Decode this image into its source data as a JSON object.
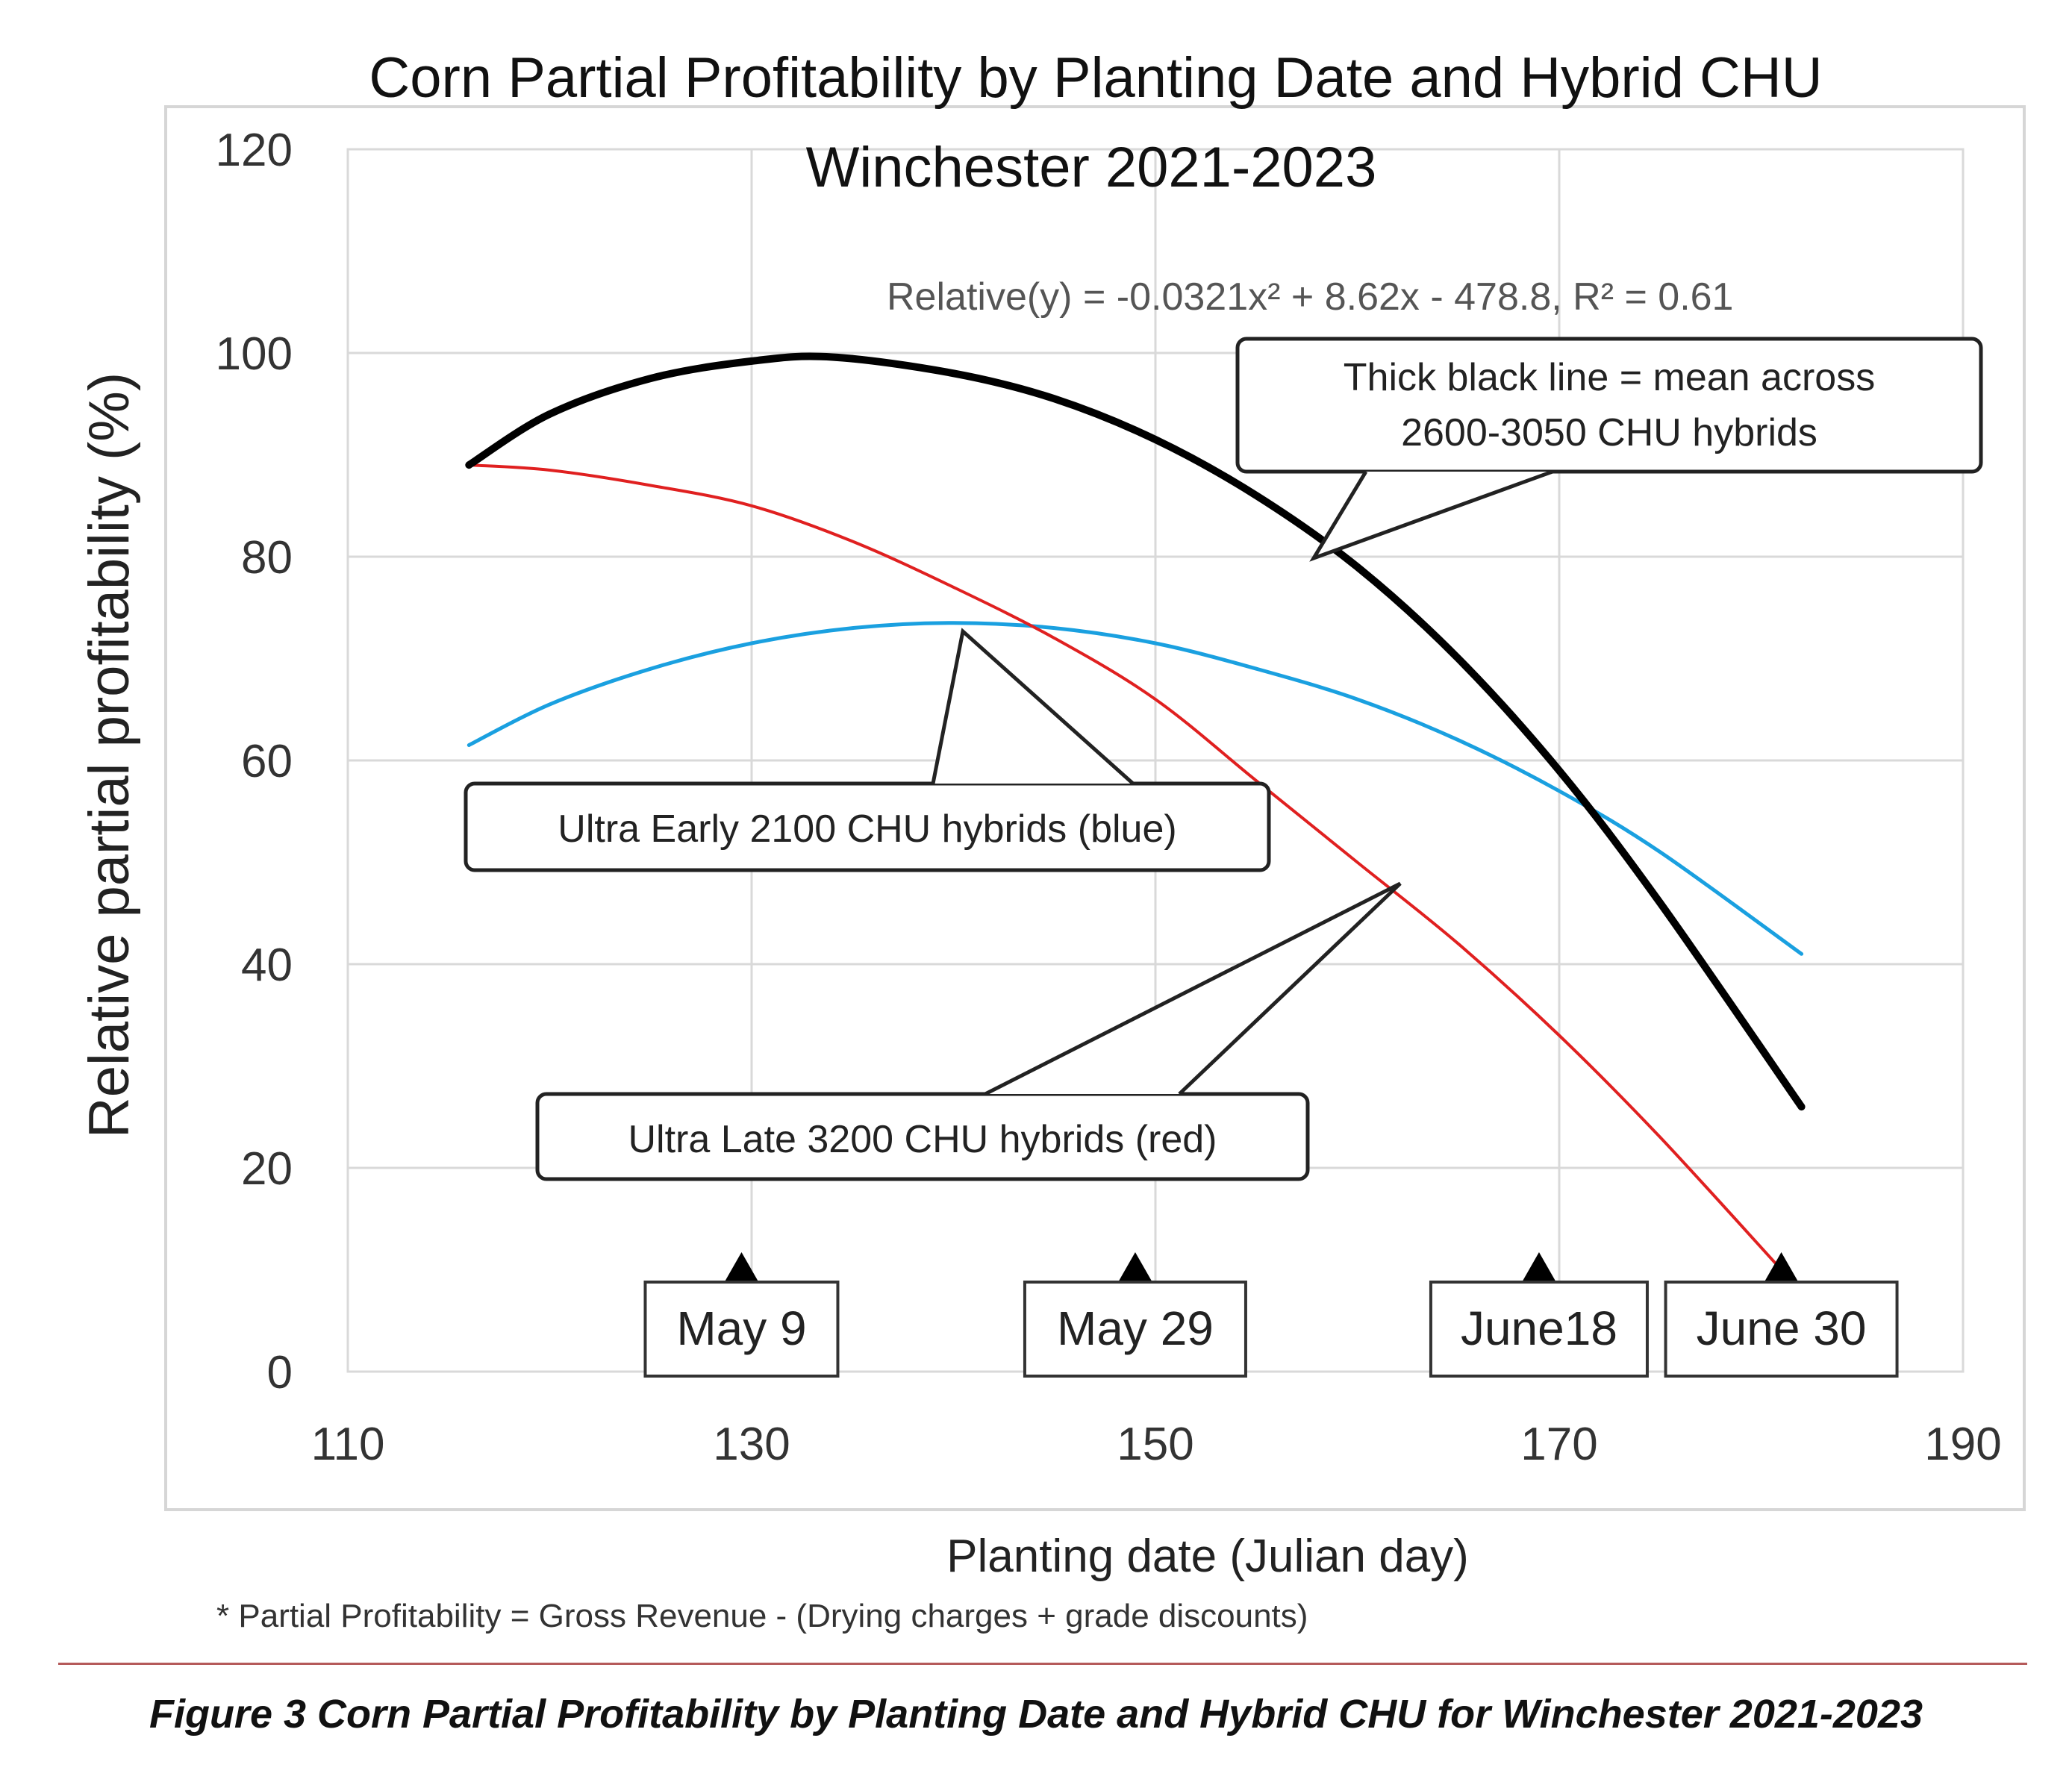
{
  "chart_data": {
    "type": "line",
    "title_line1": "Corn Partial Profitability by Planting Date and Hybrid CHU",
    "title_line2": "Winchester 2021-2023",
    "equation": "Relative(y) = -0.0321x² + 8.62x - 478.8, R² = 0.61",
    "xlabel": "Planting date (Julian day)",
    "ylabel": "Relative partial profitability (%)",
    "footnote": "* Partial Profitability = Gross Revenue - (Drying charges + grade discounts)",
    "xlim": [
      110,
      190
    ],
    "ylim": [
      0,
      120
    ],
    "xticks": [
      110,
      130,
      150,
      170,
      190
    ],
    "yticks": [
      0,
      20,
      40,
      60,
      80,
      100,
      120
    ],
    "grid": true,
    "series": [
      {
        "key": "mean",
        "color": "#000000",
        "x": [
          116,
          120,
          125,
          130,
          134,
          140,
          145,
          150,
          155,
          160,
          165,
          170,
          175,
          182
        ],
        "y": [
          89,
          94,
          97.5,
          99.2,
          99.6,
          98,
          95.5,
          91.5,
          86,
          79,
          70,
          59,
          46,
          26
        ]
      },
      {
        "key": "ultra_late",
        "color": "#e02020",
        "x": [
          116,
          120,
          125,
          130,
          135,
          140,
          145,
          150,
          155,
          160,
          165,
          170,
          175,
          181
        ],
        "y": [
          89,
          88.5,
          87,
          85,
          81.5,
          77,
          72,
          66,
          58,
          50,
          42,
          33,
          23,
          10
        ]
      },
      {
        "key": "ultra_early",
        "color": "#1aa0e0",
        "x": [
          116,
          120,
          125,
          130,
          135,
          140,
          145,
          150,
          155,
          160,
          165,
          170,
          175,
          182
        ],
        "y": [
          61.5,
          65.5,
          69,
          71.5,
          73,
          73.5,
          73,
          71.5,
          69,
          66,
          62,
          57,
          51,
          41
        ]
      }
    ],
    "callouts": [
      {
        "key": "mean",
        "text_lines": [
          "Thick black line = mean across",
          "2600-3050 CHU hybrids"
        ]
      },
      {
        "key": "ultra_early",
        "text_lines": [
          "Ultra Early 2100 CHU hybrids (blue)"
        ]
      },
      {
        "key": "ultra_late",
        "text_lines": [
          "Ultra Late 3200 CHU hybrids (red)"
        ]
      }
    ],
    "date_markers": [
      {
        "x": 129.5,
        "label": "May 9"
      },
      {
        "x": 149,
        "label": "May 29"
      },
      {
        "x": 169,
        "label": "June18"
      },
      {
        "x": 181,
        "label": "June 30"
      }
    ]
  },
  "caption": "Figure 3 Corn Partial Profitability by Planting Date and Hybrid CHU for Winchester 2021-2023"
}
